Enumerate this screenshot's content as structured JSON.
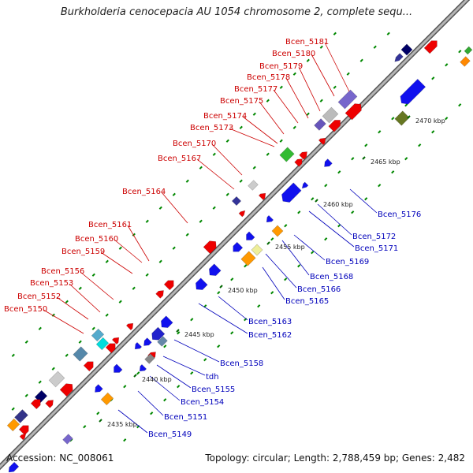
{
  "title": "Burkholderia cenocepacia AU 1054 chromosome 2, complete sequ...",
  "footer": {
    "accession": "Accession: NC_008061",
    "summary": "Topology: circular; Length: 2,788,459 bp; Genes: 2,482"
  },
  "colors": {
    "forward_label": "#cc0000",
    "reverse_label": "#0000bb",
    "backbone": "#9a9a9a",
    "tick": "#008800",
    "kbp_tick": "#006600"
  },
  "scale_labels": [
    "2435 kbp",
    "2440 kbp",
    "2445 kbp",
    "2450 kbp",
    "2455 kbp",
    "2460 kbp",
    "2465 kbp",
    "2470 kbp"
  ],
  "forward_labels": [
    "Bcen_5181",
    "Bcen_5180",
    "Bcen_5179",
    "Bcen_5178",
    "Bcen_5177",
    "Bcen_5175",
    "Bcen_5174",
    "Bcen_5173",
    "Bcen_5170",
    "Bcen_5167",
    "Bcen_5164",
    "Bcen_5161",
    "Bcen_5160",
    "Bcen_5159",
    "Bcen_5156",
    "Bcen_5153",
    "Bcen_5152",
    "Bcen_5150"
  ],
  "reverse_labels": [
    "Bcen_5176",
    "Bcen_5172",
    "Bcen_5171",
    "Bcen_5169",
    "Bcen_5168",
    "Bcen_5166",
    "Bcen_5165",
    "Bcen_5163",
    "Bcen_5162",
    "Bcen_5158",
    "tdh",
    "Bcen_5155",
    "Bcen_5154",
    "Bcen_5151",
    "Bcen_5149"
  ]
}
